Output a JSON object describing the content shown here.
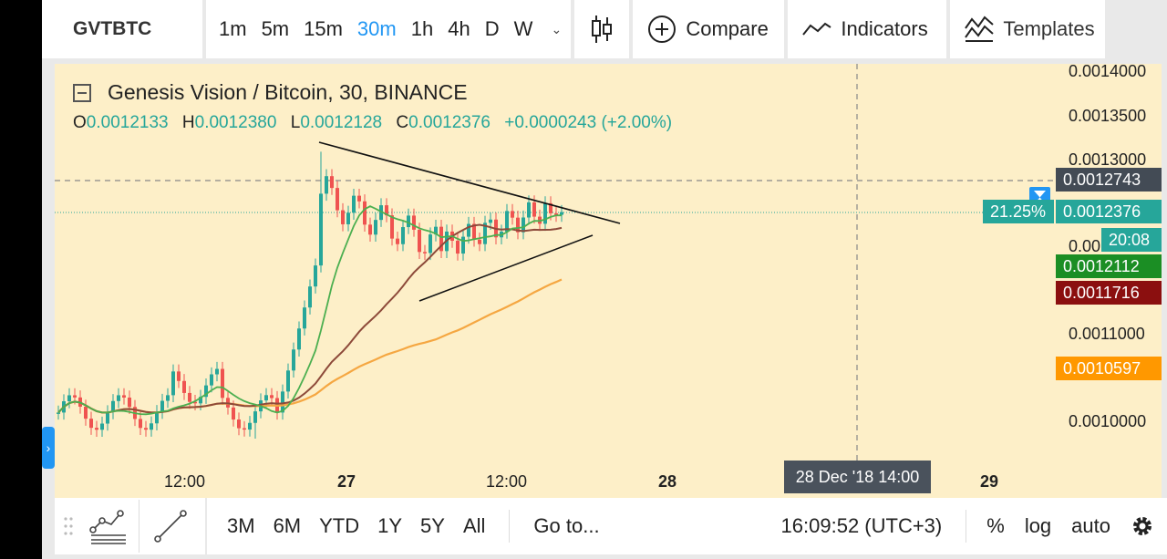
{
  "toolbar": {
    "symbol": "GVTBTC",
    "intervals": [
      "1m",
      "5m",
      "15m",
      "30m",
      "1h",
      "4h",
      "D",
      "W"
    ],
    "active_interval": "30m",
    "compare_label": "Compare",
    "indicators_label": "Indicators",
    "templates_label": "Templates"
  },
  "legend": {
    "title": "Genesis Vision / Bitcoin, 30, BINANCE",
    "o_key": "O",
    "o": "0.0012133",
    "h_key": "H",
    "h": "0.0012380",
    "l_key": "L",
    "l": "0.0012128",
    "c_key": "C",
    "c": "0.0012376",
    "change": "+0.0000243 (+2.00%)"
  },
  "price_axis": {
    "ticks": [
      "0.0014000",
      "0.0013500",
      "0.0013000",
      "0.0011000",
      "0.0010000"
    ],
    "labels": {
      "crosshair": "0.0012743",
      "last": "0.0012376",
      "last_pct": "21.25%",
      "countdown": "20:08",
      "ma_green": "0.0012112",
      "ma_brown": "0.0011716",
      "ma_orange": "0.0010597",
      "hidden_partial": "0.00"
    },
    "colors": {
      "crosshair": "#434b55",
      "last": "#26a69a",
      "ma_green": "#1b8e24",
      "ma_brown": "#8b0f0f",
      "ma_orange": "#ff9800"
    }
  },
  "time_axis": {
    "labels": [
      "12:00",
      "27",
      "12:00",
      "28",
      "29"
    ],
    "crosshair_date": "28 Dec '18   14:00"
  },
  "bottombar": {
    "ranges": [
      "3M",
      "6M",
      "YTD",
      "1Y",
      "5Y",
      "All"
    ],
    "goto": "Go to...",
    "clock": "16:09:52 (UTC+3)",
    "percent": "%",
    "log": "log",
    "auto": "auto"
  },
  "chart_data": {
    "type": "candlestick",
    "title": "Genesis Vision / Bitcoin, 30, BINANCE",
    "ylim": [
      0.00096,
      0.00141
    ],
    "x_labels": [
      "12:00",
      "27",
      "12:00",
      "28",
      "29"
    ],
    "series": [
      {
        "name": "Price",
        "candles_summary": {
          "start": 0.00101,
          "low": 0.000995,
          "high": 0.00132,
          "last": 0.0012376
        }
      },
      {
        "name": "MA green",
        "last": 0.0012112
      },
      {
        "name": "MA brown",
        "last": 0.0011716
      },
      {
        "name": "MA orange",
        "last": 0.0010597
      }
    ],
    "drawings": [
      "symmetrical triangle upper trendline",
      "symmetrical triangle lower trendline"
    ]
  }
}
